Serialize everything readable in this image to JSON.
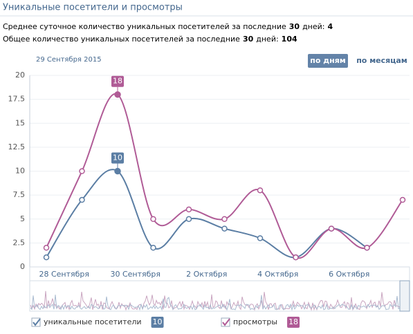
{
  "header": {
    "title": "Уникальные посетители и просмотры"
  },
  "stats": [
    {
      "text": "Среднее суточное количество уникальных посетителей за последние",
      "days": 30,
      "unit": "дней:",
      "value": 4
    },
    {
      "text": "Общее количество уникальных посетителей за последние",
      "days": 30,
      "unit": "дней:",
      "value": 104
    }
  ],
  "selected_date": "29 Сентября 2015",
  "buttons": [
    "по дням",
    "по месяцам"
  ],
  "chart_data": {
    "type": "line",
    "categories": [
      "28 Сентября",
      null,
      "30 Сентября",
      null,
      "2 Октября",
      null,
      "4 Октября",
      null,
      "6 Октября",
      null,
      null
    ],
    "series": [
      {
        "name": "уникальные посетители",
        "color": "#5b7ea4",
        "values": [
          1,
          7,
          10,
          2,
          5,
          4,
          3,
          1,
          4,
          2,
          null
        ]
      },
      {
        "name": "просмотры",
        "color": "#b05b96",
        "values": [
          2,
          10,
          18,
          5,
          6,
          5,
          8,
          1,
          4,
          2,
          7
        ]
      }
    ],
    "highlight": 2,
    "ylim": [
      0,
      20
    ],
    "yticks": [
      0,
      2.5,
      5,
      7.5,
      10,
      12.5,
      15,
      17.5,
      20
    ],
    "grid": true
  }
}
